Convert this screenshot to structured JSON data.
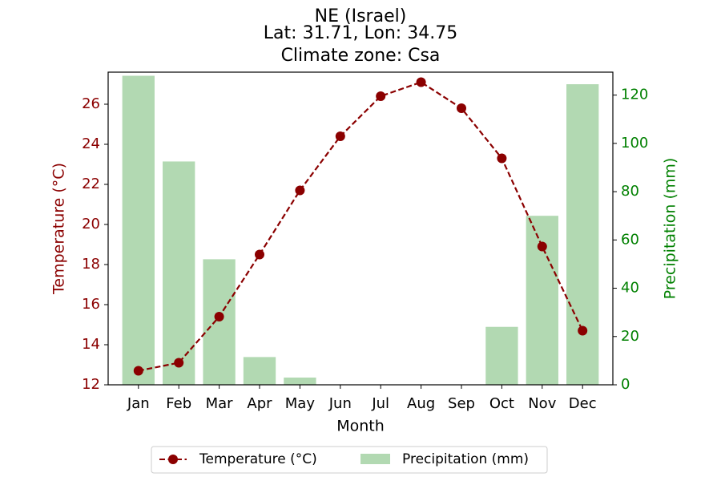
{
  "chart_data": {
    "type": "bar+line",
    "title_lines": [
      "NE (Israel)",
      "Lat: 31.71, Lon: 34.75",
      "Climate zone: Csa"
    ],
    "xlabel": "Month",
    "ylabel_left": "Temperature (°C)",
    "ylabel_right": "Precipitation (mm)",
    "categories": [
      "Jan",
      "Feb",
      "Mar",
      "Apr",
      "May",
      "Jun",
      "Jul",
      "Aug",
      "Sep",
      "Oct",
      "Nov",
      "Dec"
    ],
    "y_left_lim": [
      12,
      27.6
    ],
    "y_left_ticks": [
      12,
      14,
      16,
      18,
      20,
      22,
      24,
      26
    ],
    "y_right_lim": [
      0,
      129.5
    ],
    "y_right_ticks": [
      0,
      20,
      40,
      60,
      80,
      100,
      120
    ],
    "series": [
      {
        "name": "Temperature (°C)",
        "type": "line",
        "axis": "left",
        "color": "#8b0000",
        "values": [
          12.7,
          13.1,
          15.4,
          18.5,
          21.7,
          24.4,
          26.4,
          27.1,
          25.8,
          23.3,
          18.9,
          14.7
        ]
      },
      {
        "name": "Precipitation (mm)",
        "type": "bar",
        "axis": "right",
        "color": "#b2d9b2",
        "values": [
          128,
          92.5,
          52,
          11.5,
          3,
          0,
          0,
          0,
          0,
          24,
          70,
          124.5
        ]
      }
    ],
    "left_axis_color": "#8b0000",
    "right_axis_color": "#008000",
    "legend_position": "bottom-center"
  }
}
